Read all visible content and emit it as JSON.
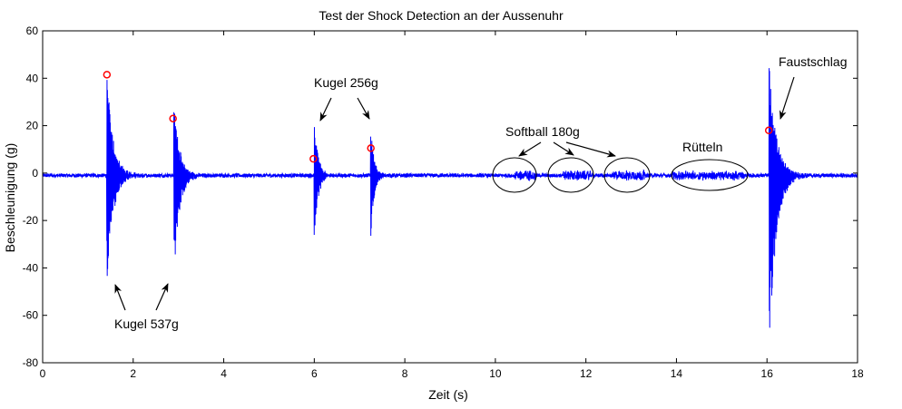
{
  "chart_data": {
    "type": "line",
    "title": "Test der Shock Detection an der Aussenuhr",
    "xlabel": "Zeit (s)",
    "ylabel": "Beschleunigung (g)",
    "xlim": [
      0,
      18
    ],
    "ylim": [
      -80,
      60
    ],
    "xticks": [
      0,
      2,
      4,
      6,
      8,
      10,
      12,
      14,
      16,
      18
    ],
    "yticks": [
      -80,
      -60,
      -40,
      -20,
      0,
      20,
      40,
      60
    ],
    "grid": false,
    "baseline": -1,
    "noise_amplitude": 0.8,
    "colors": {
      "signal": "#0000ff",
      "marker": "#ff0000",
      "axis": "#000000"
    },
    "shocks": [
      {
        "t": 1.42,
        "max": 44,
        "min": -45,
        "decay": 0.14
      },
      {
        "t": 2.9,
        "max": 32,
        "min": -44,
        "decay": 0.12
      },
      {
        "t": 6.0,
        "max": 26,
        "min": -29,
        "decay": 0.08
      },
      {
        "t": 7.25,
        "max": 20,
        "min": -28,
        "decay": 0.07
      },
      {
        "t": 16.05,
        "max": 47,
        "min": -73,
        "decay": 0.16
      }
    ],
    "small_events": [
      {
        "t0": 10.4,
        "t1": 10.9,
        "amp": 1.8
      },
      {
        "t0": 11.5,
        "t1": 12.1,
        "amp": 1.6
      },
      {
        "t0": 12.6,
        "t1": 13.3,
        "amp": 1.7
      },
      {
        "t0": 13.9,
        "t1": 15.5,
        "amp": 1.4
      }
    ],
    "markers": [
      {
        "x": 1.42,
        "y": 41.5
      },
      {
        "x": 2.88,
        "y": 23
      },
      {
        "x": 5.98,
        "y": 6
      },
      {
        "x": 7.25,
        "y": 10.5
      },
      {
        "x": 16.04,
        "y": 18
      }
    ],
    "annotations": {
      "kugel537": "Kugel 537g",
      "kugel256": "Kugel 256g",
      "softball": "Softball 180g",
      "ruetteln": "Rütteln",
      "faustschlag": "Faustschlag"
    }
  }
}
